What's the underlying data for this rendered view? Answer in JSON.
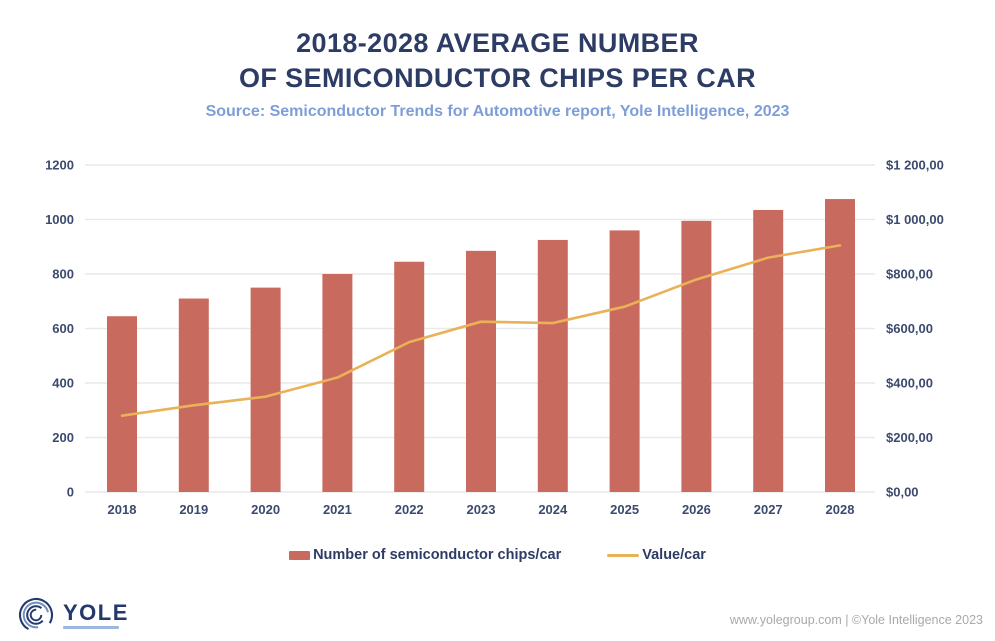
{
  "header": {
    "title_line1": "2018-2028 AVERAGE NUMBER",
    "title_line2": "OF SEMICONDUCTOR CHIPS PER CAR",
    "subtitle": "Source: Semiconductor Trends for Automotive report, Yole Intelligence, 2023"
  },
  "chart_data": {
    "type": "bar",
    "title": "2018-2028 Average number of semiconductor chips per car",
    "categories": [
      "2018",
      "2019",
      "2020",
      "2021",
      "2022",
      "2023",
      "2024",
      "2025",
      "2026",
      "2027",
      "2028"
    ],
    "series": [
      {
        "name": "Number of semiconductor chips/car",
        "type": "bar",
        "axis": "left",
        "color": "#c96a5e",
        "values": [
          645,
          710,
          750,
          800,
          845,
          885,
          925,
          960,
          995,
          1035,
          1075
        ]
      },
      {
        "name": "Value/car",
        "type": "line",
        "axis": "right",
        "color": "#e9b257",
        "values": [
          280,
          318,
          350,
          420,
          550,
          625,
          620,
          680,
          780,
          860,
          905
        ]
      }
    ],
    "left_axis": {
      "min": 0,
      "max": 1200,
      "tick_labels": [
        "0",
        "200",
        "400",
        "600",
        "800",
        "1000",
        "1200"
      ]
    },
    "right_axis": {
      "min": 0,
      "max": 1200,
      "tick_labels": [
        "$0,00",
        "$200,00",
        "$400,00",
        "$600,00",
        "$800,00",
        "$1 000,00",
        "$1 200,00"
      ]
    },
    "grid": true,
    "legend_position": "bottom"
  },
  "footer": {
    "logo_text": "YOLE",
    "credit": "www.yolegroup.com | ©Yole Intelligence 2023"
  },
  "colors": {
    "bar": "#c96a5e",
    "line": "#e9b257",
    "title": "#2d3c64",
    "subtitle": "#7d9ed8",
    "axis_text": "#3b4a6e",
    "gridline": "#e9e9e9",
    "credit_text": "#a9a9a9"
  }
}
